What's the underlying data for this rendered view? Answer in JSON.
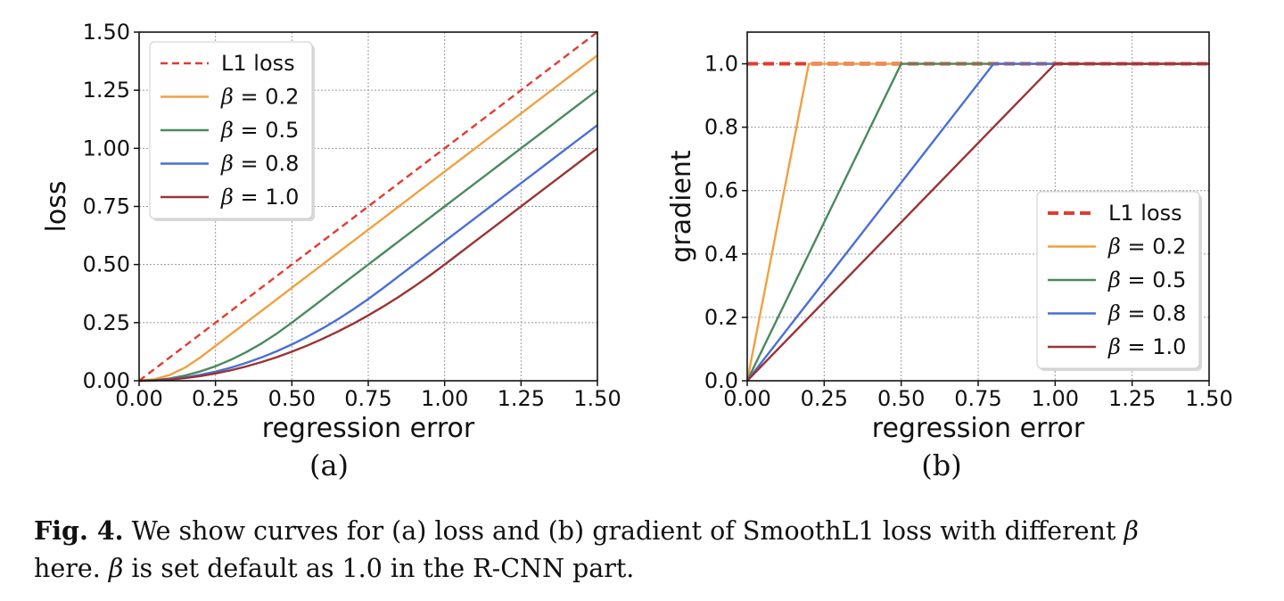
{
  "chart_data": [
    {
      "panel": "(a)",
      "type": "line",
      "xlabel": "regression error",
      "ylabel": "loss",
      "xlim": [
        0,
        1.5
      ],
      "ylim": [
        0,
        1.5
      ],
      "xticks": [
        "0.00",
        "0.25",
        "0.50",
        "0.75",
        "1.00",
        "1.25",
        "1.50"
      ],
      "yticks": [
        "0.00",
        "0.25",
        "0.50",
        "0.75",
        "1.00",
        "1.25",
        "1.50"
      ],
      "grid": true,
      "legend_position": "top-left",
      "x": [
        0,
        0.05,
        0.1,
        0.15,
        0.2,
        0.25,
        0.3,
        0.35,
        0.4,
        0.45,
        0.5,
        0.55,
        0.6,
        0.65,
        0.7,
        0.75,
        0.8,
        0.85,
        0.9,
        0.95,
        1.0,
        1.05,
        1.1,
        1.15,
        1.2,
        1.25,
        1.3,
        1.35,
        1.4,
        1.45,
        1.5
      ],
      "series": [
        {
          "name": "L1 loss",
          "style": "dashed",
          "color": "#e33b2e",
          "values": [
            0,
            0.05,
            0.1,
            0.15,
            0.2,
            0.25,
            0.3,
            0.35,
            0.4,
            0.45,
            0.5,
            0.55,
            0.6,
            0.65,
            0.7,
            0.75,
            0.8,
            0.85,
            0.9,
            0.95,
            1.0,
            1.05,
            1.1,
            1.15,
            1.2,
            1.25,
            1.3,
            1.35,
            1.4,
            1.45,
            1.5
          ]
        },
        {
          "name": "β = 0.2",
          "style": "solid",
          "color": "#f0a040",
          "values": [
            0,
            0.00625,
            0.025,
            0.05625,
            0.1,
            0.15,
            0.2,
            0.25,
            0.3,
            0.35,
            0.4,
            0.45,
            0.5,
            0.55,
            0.6,
            0.65,
            0.7,
            0.75,
            0.8,
            0.85,
            0.9,
            0.95,
            1.0,
            1.05,
            1.1,
            1.15,
            1.2,
            1.25,
            1.3,
            1.35,
            1.4
          ]
        },
        {
          "name": "β = 0.5",
          "style": "solid",
          "color": "#4a8a5e",
          "values": [
            0,
            0.0025,
            0.01,
            0.0225,
            0.04,
            0.0625,
            0.09,
            0.1225,
            0.16,
            0.2025,
            0.25,
            0.3,
            0.35,
            0.4,
            0.45,
            0.5,
            0.55,
            0.6,
            0.65,
            0.7,
            0.75,
            0.8,
            0.85,
            0.9,
            0.95,
            1.0,
            1.05,
            1.1,
            1.15,
            1.2,
            1.25
          ]
        },
        {
          "name": "β = 0.8",
          "style": "solid",
          "color": "#4a6fd4",
          "values": [
            0,
            0.0015625,
            0.00625,
            0.0140625,
            0.025,
            0.0390625,
            0.05625,
            0.0765625,
            0.1,
            0.1265625,
            0.15625,
            0.1890625,
            0.225,
            0.2640625,
            0.30625,
            0.3515625,
            0.4,
            0.45,
            0.5,
            0.55,
            0.6,
            0.65,
            0.7,
            0.75,
            0.8,
            0.85,
            0.9,
            0.95,
            1.0,
            1.05,
            1.1
          ]
        },
        {
          "name": "β = 1.0",
          "style": "solid",
          "color": "#9a3434",
          "values": [
            0,
            0.00125,
            0.005,
            0.01125,
            0.02,
            0.03125,
            0.045,
            0.06125,
            0.08,
            0.10125,
            0.125,
            0.15125,
            0.18,
            0.21125,
            0.245,
            0.28125,
            0.32,
            0.36125,
            0.405,
            0.45125,
            0.5,
            0.55,
            0.6,
            0.65,
            0.7,
            0.75,
            0.8,
            0.85,
            0.9,
            0.95,
            1.0
          ]
        }
      ]
    },
    {
      "panel": "(b)",
      "type": "line",
      "xlabel": "regression error",
      "ylabel": "gradient",
      "xlim": [
        0,
        1.5
      ],
      "ylim": [
        0,
        1.1
      ],
      "xticks": [
        "0.00",
        "0.25",
        "0.50",
        "0.75",
        "1.00",
        "1.25",
        "1.50"
      ],
      "yticks": [
        "0.0",
        "0.2",
        "0.4",
        "0.6",
        "0.8",
        "1.0"
      ],
      "grid": true,
      "legend_position": "bottom-right",
      "series": [
        {
          "name": "L1 loss",
          "style": "dashed",
          "color": "#e33b2e",
          "x": [
            0,
            1.5
          ],
          "values": [
            1,
            1
          ]
        },
        {
          "name": "β = 0.2",
          "style": "solid",
          "color": "#f0a040",
          "x": [
            0,
            0.2,
            1.5
          ],
          "values": [
            0,
            1,
            1
          ]
        },
        {
          "name": "β = 0.5",
          "style": "solid",
          "color": "#4a8a5e",
          "x": [
            0,
            0.5,
            1.5
          ],
          "values": [
            0,
            1,
            1
          ]
        },
        {
          "name": "β = 0.8",
          "style": "solid",
          "color": "#4a6fd4",
          "x": [
            0,
            0.8,
            1.5
          ],
          "values": [
            0,
            1,
            1
          ]
        },
        {
          "name": "β = 1.0",
          "style": "solid",
          "color": "#9a3434",
          "x": [
            0,
            1.0,
            1.5
          ],
          "values": [
            0,
            1,
            1
          ]
        }
      ]
    }
  ],
  "caption": {
    "label": "Fig. 4.",
    "line1": "We show curves for (a) loss and (b) gradient of SmoothL1 loss with different",
    "beta": "β",
    "line2_end": " is set default as 1.0 in the R-CNN part.",
    "line2_start": "here. "
  }
}
